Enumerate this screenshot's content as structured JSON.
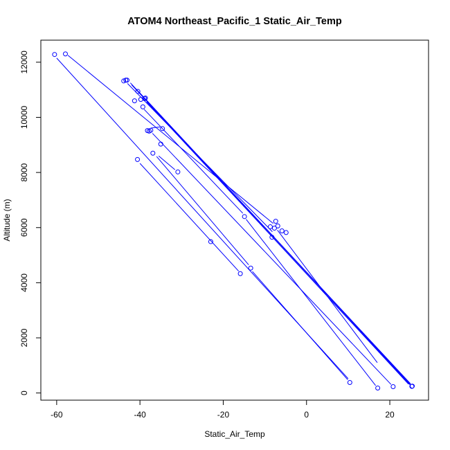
{
  "chart_data": {
    "type": "scatter",
    "title": "ATOM4 Northeast_Pacific_1 Static_Air_Temp",
    "xlabel": "Static_Air_Temp",
    "ylabel": "Altitude (m)",
    "xlim": [
      -63.8,
      29.3
    ],
    "ylim": [
      -260,
      12800
    ],
    "xticks": [
      -60,
      -40,
      -20,
      0,
      20
    ],
    "yticks": [
      0,
      2000,
      4000,
      6000,
      8000,
      10000,
      12000
    ],
    "grid": false,
    "colors": {
      "series": "#0000ff",
      "axis": "#000000"
    },
    "series": [
      {
        "points": [
          {
            "x": -60.5,
            "y": 12280
          },
          {
            "x": -57.9,
            "y": 12300
          },
          {
            "x": -43.9,
            "y": 11320
          },
          {
            "x": -43.4,
            "y": 11350
          },
          {
            "x": -43.1,
            "y": 11350
          },
          {
            "x": -40.5,
            "y": 10940
          },
          {
            "x": -39.8,
            "y": 10650
          },
          {
            "x": -41.3,
            "y": 10600
          },
          {
            "x": -38.7,
            "y": 10700
          },
          {
            "x": -38.9,
            "y": 10680
          },
          {
            "x": -39.3,
            "y": 10380
          },
          {
            "x": -34.6,
            "y": 9590
          },
          {
            "x": -38.2,
            "y": 9520
          },
          {
            "x": -37.8,
            "y": 9500
          },
          {
            "x": -37.4,
            "y": 9530
          },
          {
            "x": -35.0,
            "y": 9030
          },
          {
            "x": -36.9,
            "y": 8700
          },
          {
            "x": -30.9,
            "y": 8020
          },
          {
            "x": -40.6,
            "y": 8470
          },
          {
            "x": -14.9,
            "y": 6400
          },
          {
            "x": -7.4,
            "y": 6230
          },
          {
            "x": -6.9,
            "y": 6060
          },
          {
            "x": -8.7,
            "y": 6030
          },
          {
            "x": -7.7,
            "y": 5980
          },
          {
            "x": -5.9,
            "y": 5880
          },
          {
            "x": -4.9,
            "y": 5820
          },
          {
            "x": -8.3,
            "y": 5650
          },
          {
            "x": -23.0,
            "y": 5490
          },
          {
            "x": -13.4,
            "y": 4530
          },
          {
            "x": -15.9,
            "y": 4330
          },
          {
            "x": 10.4,
            "y": 380
          },
          {
            "x": 20.8,
            "y": 230
          },
          {
            "x": 25.4,
            "y": 250
          },
          {
            "x": 25.3,
            "y": 240
          },
          {
            "x": 17.1,
            "y": 180
          }
        ],
        "segments": [
          [
            {
              "x": -60.0,
              "y": 12150
            },
            {
              "x": 10.0,
              "y": 520
            }
          ],
          [
            {
              "x": -57.3,
              "y": 12250
            },
            {
              "x": -8.0,
              "y": 6150
            }
          ],
          [
            {
              "x": -43.0,
              "y": 11230
            },
            {
              "x": -8.2,
              "y": 5850
            }
          ],
          [
            {
              "x": -42.3,
              "y": 11250
            },
            {
              "x": 25.0,
              "y": 330
            }
          ],
          [
            {
              "x": -42.0,
              "y": 11180
            },
            {
              "x": 24.5,
              "y": 320
            }
          ],
          [
            {
              "x": -40.0,
              "y": 10880
            },
            {
              "x": 25.0,
              "y": 300
            }
          ],
          [
            {
              "x": -38.4,
              "y": 10560
            },
            {
              "x": 24.8,
              "y": 300
            }
          ],
          [
            {
              "x": -39.0,
              "y": 10290
            },
            {
              "x": -15.3,
              "y": 6520
            }
          ],
          [
            {
              "x": -14.5,
              "y": 6300
            },
            {
              "x": 16.6,
              "y": 270
            }
          ],
          [
            {
              "x": -37.4,
              "y": 9610
            },
            {
              "x": -35.2,
              "y": 9650
            }
          ],
          [
            {
              "x": -37.0,
              "y": 9420
            },
            {
              "x": 20.3,
              "y": 310
            }
          ],
          [
            {
              "x": -35.5,
              "y": 8600
            },
            {
              "x": -31.6,
              "y": 8100
            }
          ],
          [
            {
              "x": -36.0,
              "y": 8580
            },
            {
              "x": -13.9,
              "y": 4650
            }
          ],
          [
            {
              "x": -13.0,
              "y": 4410
            },
            {
              "x": 9.9,
              "y": 480
            }
          ],
          [
            {
              "x": -40.0,
              "y": 8330
            },
            {
              "x": -16.3,
              "y": 4420
            }
          ],
          [
            {
              "x": -7.0,
              "y": 5910
            },
            {
              "x": 17.0,
              "y": 1100
            }
          ]
        ]
      }
    ]
  }
}
